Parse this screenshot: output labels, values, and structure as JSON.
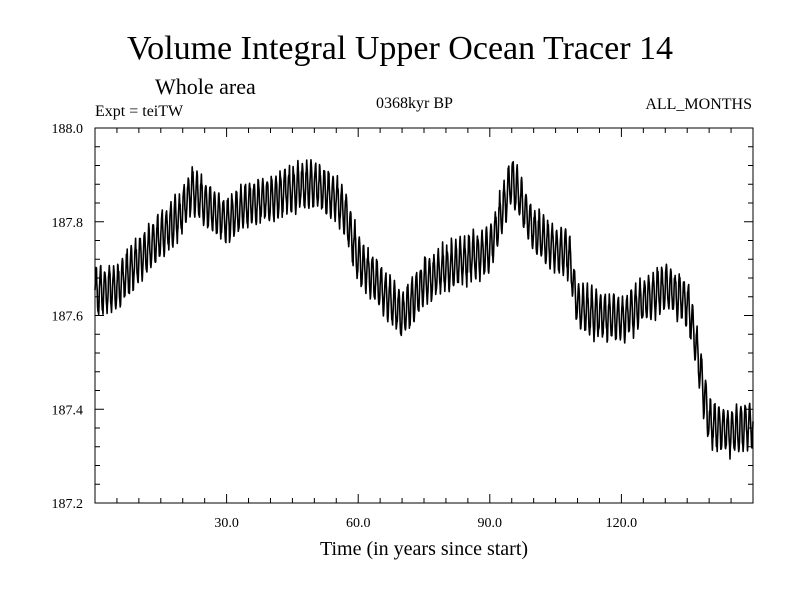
{
  "chart_data": {
    "type": "line",
    "title": "Volume Integral Upper Ocean Tracer 14",
    "subtitle": "Whole area",
    "experiment": "Expt = teiTW",
    "period": "0368kyr BP",
    "months": "ALL_MONTHS",
    "xlabel": "Time (in years since start)",
    "ylabel": "",
    "xlim": [
      0,
      150
    ],
    "ylim": [
      187.2,
      188.0
    ],
    "xticks": [
      30,
      60,
      90,
      120
    ],
    "xtick_labels": [
      "30.0",
      "60.0",
      "90.0",
      "120.0"
    ],
    "yticks": [
      187.2,
      187.4,
      187.6,
      187.8,
      188.0
    ],
    "ytick_labels": [
      "187.2",
      "187.4",
      "187.6",
      "187.8",
      "188.0"
    ],
    "grid": false,
    "series": [
      {
        "name": "Tracer 14 volume integral",
        "color": "#000000",
        "trend_x": [
          0,
          5,
          10,
          15,
          20,
          22,
          25,
          30,
          35,
          40,
          45,
          50,
          55,
          57,
          60,
          65,
          70,
          75,
          80,
          85,
          90,
          95,
          100,
          105,
          108,
          110,
          115,
          120,
          125,
          130,
          135,
          137,
          140,
          145,
          150
        ],
        "trend_y": [
          187.65,
          187.66,
          187.72,
          187.77,
          187.82,
          187.87,
          187.84,
          187.8,
          187.84,
          187.85,
          187.87,
          187.88,
          187.85,
          187.82,
          187.72,
          187.66,
          187.6,
          187.67,
          187.7,
          187.72,
          187.74,
          187.89,
          187.78,
          187.74,
          187.73,
          187.62,
          187.6,
          187.59,
          187.63,
          187.66,
          187.63,
          187.54,
          187.37,
          187.35,
          187.37
        ],
        "cycle_period_years": 1,
        "cycle_amplitude": 0.045
      }
    ]
  }
}
